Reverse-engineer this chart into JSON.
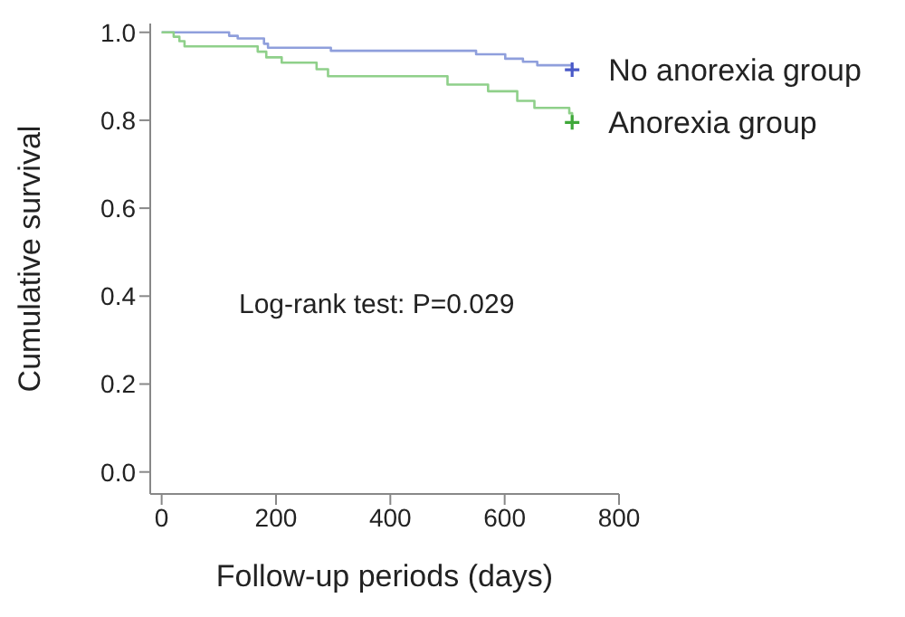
{
  "chart_data": {
    "type": "step",
    "xlabel": "Follow-up periods (days)",
    "ylabel": "Cumulative survival",
    "xlim": [
      -20,
      800
    ],
    "xticks": [
      0,
      200,
      400,
      600,
      800
    ],
    "ylim": [
      -0.05,
      1.02
    ],
    "yticks": [
      {
        "value": 0,
        "label": "0.0"
      },
      0.2,
      0.4,
      0.6,
      0.8,
      {
        "value": 1,
        "label": "1.0"
      }
    ],
    "grid": false,
    "legend": false,
    "annotations": [
      "Log-rank test: P=0.029"
    ],
    "series": [
      {
        "name": "No anorexia group",
        "color": "#8f9fdc",
        "x": [
          0,
          118,
          133,
          179,
          186,
          296,
          550,
          601,
          632,
          657,
          718
        ],
        "values": [
          1.0,
          0.992,
          0.986,
          0.974,
          0.965,
          0.958,
          0.95,
          0.94,
          0.933,
          0.925,
          0.915
        ]
      },
      {
        "name": "Anorexia group",
        "color": "#8fd08a",
        "x": [
          0,
          21,
          31,
          40,
          168,
          183,
          210,
          271,
          291,
          500,
          571,
          622,
          652,
          713,
          718
        ],
        "values": [
          1.0,
          0.99,
          0.98,
          0.968,
          0.956,
          0.943,
          0.931,
          0.916,
          0.9,
          0.881,
          0.866,
          0.844,
          0.828,
          0.816,
          0.795
        ]
      },
      {
        "type": "scatter",
        "marker": "cross",
        "color": "#4a5ac8",
        "x": [
          718
        ],
        "values": [
          0.915
        ]
      },
      {
        "type": "scatter",
        "marker": "cross",
        "color": "#3fa83a",
        "x": [
          718
        ],
        "values": [
          0.795
        ]
      }
    ]
  }
}
